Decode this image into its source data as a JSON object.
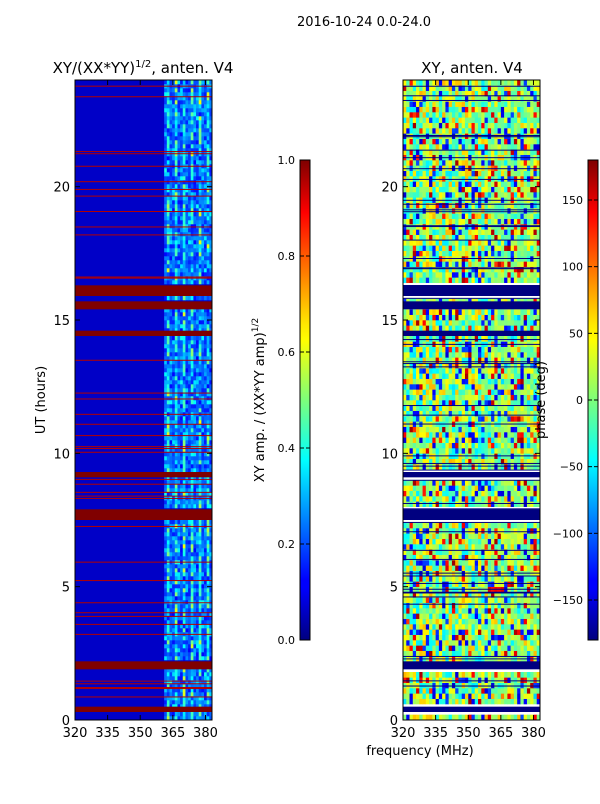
{
  "suptitle": "2016-10-24 0.0-24.0",
  "shared_xlabel": "frequency (MHz)",
  "chart_data": [
    {
      "type": "heatmap",
      "title_main": "XY/(XX*YY)",
      "title_sup": "1/2",
      "title_rest": ", anten. V4",
      "ylabel": "UT (hours)",
      "xlim": [
        320,
        383
      ],
      "ylim": [
        0,
        24
      ],
      "x_ticks": [
        320,
        335,
        350,
        365,
        380
      ],
      "y_ticks": [
        0,
        5,
        10,
        15,
        20
      ],
      "colorbar": {
        "label_main": "XY amp. / (XX*YY amp)",
        "label_sup": "1/2",
        "range": [
          0.0,
          1.0
        ],
        "ticks": [
          "0.0",
          "0.2",
          "0.4",
          "0.6",
          "0.8",
          "1.0"
        ],
        "tick_values": [
          0.0,
          0.2,
          0.4,
          0.6,
          0.8,
          1.0
        ]
      },
      "saturated_bands_hours": [
        [
          0.3,
          0.5
        ],
        [
          1.9,
          2.2
        ],
        [
          7.5,
          7.9
        ],
        [
          9.1,
          9.3
        ],
        [
          14.4,
          14.6
        ],
        [
          15.4,
          15.7
        ],
        [
          15.9,
          16.3
        ]
      ]
    },
    {
      "type": "heatmap",
      "title": "XY, anten. V4",
      "xlim": [
        320,
        383
      ],
      "ylim": [
        0,
        24
      ],
      "x_ticks": [
        320,
        335,
        350,
        365,
        380
      ],
      "y_ticks": [
        0,
        5,
        10,
        15,
        20
      ],
      "colorbar": {
        "label": "phase (deg)",
        "range": [
          -180,
          180
        ],
        "ticks": [
          "−150",
          "−100",
          "−50",
          "0",
          "50",
          "100",
          "150"
        ],
        "tick_values": [
          -150,
          -100,
          -50,
          0,
          50,
          100,
          150
        ]
      },
      "dark_bands_hours": [
        [
          0.3,
          0.5
        ],
        [
          1.9,
          2.2
        ],
        [
          7.5,
          7.9
        ],
        [
          9.1,
          9.3
        ],
        [
          14.4,
          14.6
        ],
        [
          15.4,
          15.7
        ],
        [
          15.9,
          16.3
        ]
      ]
    }
  ]
}
